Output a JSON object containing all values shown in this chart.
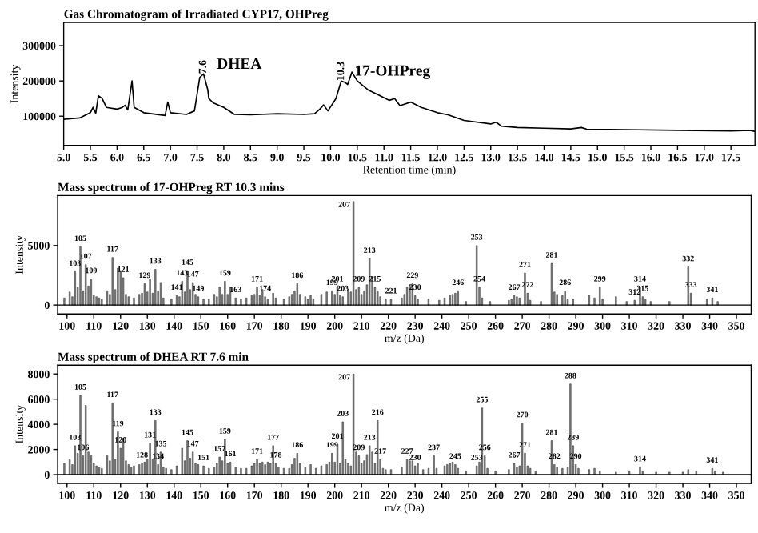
{
  "chart_data": [
    {
      "type": "line",
      "title": "Gas Chromatogram of Irradiated CYP17, OHPreg",
      "xlabel": "Retention time (min)",
      "ylabel": "Intensity",
      "color": "#000000",
      "x": [
        5.0,
        5.3,
        5.5,
        5.55,
        5.6,
        5.65,
        5.72,
        5.8,
        6.0,
        6.1,
        6.15,
        6.2,
        6.28,
        6.32,
        6.5,
        6.9,
        6.95,
        7.0,
        7.3,
        7.45,
        7.55,
        7.62,
        7.7,
        7.72,
        7.8,
        8.0,
        8.2,
        8.5,
        9.0,
        9.5,
        9.7,
        9.8,
        9.87,
        9.95,
        10.1,
        10.2,
        10.28,
        10.32,
        10.4,
        10.5,
        10.7,
        10.9,
        11.1,
        11.2,
        11.3,
        11.5,
        11.7,
        12.0,
        12.2,
        12.5,
        13.0,
        13.1,
        13.2,
        13.5,
        14.0,
        14.5,
        14.7,
        14.8,
        15.5,
        16.5,
        17.5,
        17.85,
        17.95
      ],
      "values": [
        91000,
        95000,
        110000,
        125000,
        108000,
        158000,
        150000,
        125000,
        120000,
        125000,
        131000,
        118000,
        200000,
        125000,
        110000,
        102000,
        140000,
        110000,
        105000,
        115000,
        210000,
        220000,
        175000,
        150000,
        138000,
        125000,
        105000,
        104000,
        107000,
        105000,
        107000,
        120000,
        132000,
        115000,
        150000,
        200000,
        195000,
        190000,
        225000,
        200000,
        175000,
        160000,
        145000,
        150000,
        130000,
        140000,
        125000,
        110000,
        104000,
        88000,
        78000,
        83000,
        72000,
        68000,
        66000,
        64000,
        68000,
        63000,
        62000,
        60000,
        58000,
        60000,
        57000
      ],
      "xlim": [
        5.0,
        17.95
      ],
      "ylim": [
        17000,
        366000
      ],
      "xticks": [
        {
          "value": 5,
          "label": "5.0"
        },
        5.5,
        {
          "value": 6,
          "label": "6.0"
        },
        6.5,
        {
          "value": 7,
          "label": "7.0"
        },
        7.5,
        {
          "value": 8,
          "label": "8.0"
        },
        8.5,
        {
          "value": 9,
          "label": "9.0"
        },
        9.5,
        {
          "value": 10,
          "label": "10.0"
        },
        10.5,
        {
          "value": 11,
          "label": "11.0"
        },
        11.5,
        {
          "value": 12,
          "label": "12.0"
        },
        12.5,
        {
          "value": 13,
          "label": "13.0"
        },
        13.5,
        {
          "value": 14,
          "label": "14.0"
        },
        14.5,
        {
          "value": 15,
          "label": "15.0"
        },
        15.5,
        {
          "value": 16,
          "label": "16.0"
        },
        16.5,
        {
          "value": 17,
          "label": "17.0"
        },
        17.5
      ],
      "yticks": [
        100000,
        200000,
        300000
      ],
      "annotations": [
        {
          "text": "7.6",
          "x": 7.62,
          "y": 220000
        },
        "DHEA",
        {
          "text": "10.3",
          "x": 10.2,
          "y": 200000
        },
        "17-OHPreg"
      ]
    },
    {
      "type": "bar",
      "title": "Mass spectrum of 17-OHPreg RT 10.3 mins",
      "xlabel": "m/z (Da)",
      "ylabel": "Intensity",
      "color": "#808080",
      "x": [
        99,
        101,
        102,
        103,
        104,
        105,
        106,
        107,
        108,
        109,
        110,
        111,
        112,
        113,
        115,
        116,
        117,
        118,
        119,
        120,
        121,
        122,
        123,
        125,
        127,
        128,
        129,
        130,
        131,
        132,
        133,
        134,
        135,
        136,
        139,
        141,
        142,
        143,
        144,
        145,
        146,
        147,
        148,
        149,
        151,
        153,
        155,
        156,
        157,
        158,
        159,
        160,
        161,
        163,
        165,
        167,
        169,
        170,
        171,
        172,
        173,
        174,
        175,
        177,
        178,
        181,
        183,
        184,
        185,
        186,
        187,
        189,
        190,
        191,
        192,
        195,
        197,
        199,
        200,
        201,
        202,
        203,
        205,
        206,
        207,
        208,
        209,
        210,
        211,
        212,
        213,
        214,
        215,
        216,
        217,
        219,
        221,
        225,
        226,
        227,
        228,
        229,
        230,
        231,
        235,
        239,
        241,
        243,
        244,
        245,
        246,
        249,
        253,
        254,
        255,
        258,
        265,
        266,
        267,
        268,
        269,
        271,
        272,
        273,
        277,
        281,
        282,
        283,
        285,
        286,
        287,
        289,
        295,
        297,
        299,
        300,
        305,
        309,
        312,
        314,
        315,
        316,
        318,
        325,
        332,
        333,
        339,
        341,
        343
      ],
      "values": [
        600,
        1100,
        700,
        2800,
        1500,
        4900,
        1200,
        3400,
        1600,
        2200,
        800,
        700,
        600,
        500,
        1200,
        900,
        4000,
        1300,
        3100,
        2900,
        2300,
        900,
        700,
        600,
        900,
        1000,
        1800,
        1100,
        2200,
        1000,
        3000,
        1200,
        1900,
        600,
        500,
        800,
        700,
        2000,
        1100,
        2900,
        1300,
        1900,
        900,
        700,
        500,
        500,
        900,
        700,
        1500,
        900,
        2000,
        900,
        1500,
        600,
        500,
        600,
        800,
        900,
        1500,
        800,
        1300,
        700,
        500,
        1000,
        600,
        500,
        700,
        900,
        1200,
        1800,
        900,
        700,
        500,
        800,
        500,
        900,
        1100,
        1200,
        900,
        1500,
        800,
        700,
        1200,
        1100,
        8700,
        1300,
        1500,
        900,
        1200,
        1700,
        3900,
        2400,
        1500,
        1200,
        700,
        500,
        500,
        600,
        900,
        1500,
        1700,
        1800,
        800,
        500,
        500,
        400,
        600,
        800,
        900,
        1000,
        1200,
        300,
        5000,
        1500,
        600,
        300,
        400,
        500,
        800,
        700,
        600,
        2700,
        1000,
        400,
        300,
        3500,
        1100,
        900,
        800,
        1200,
        500,
        500,
        800,
        600,
        1500,
        500,
        700,
        300,
        400,
        1500,
        700,
        500,
        300,
        300,
        3200,
        1000,
        500,
        600,
        300
      ],
      "annotations": [
        {
          "text": "103",
          "x": 103,
          "y": 2800
        },
        {
          "text": "105",
          "x": 105,
          "y": 4900
        },
        {
          "text": "107",
          "x": 107,
          "y": 3400
        },
        {
          "text": "109",
          "x": 109,
          "y": 2200
        },
        {
          "text": "117",
          "x": 117,
          "y": 4000
        },
        {
          "text": "121",
          "x": 121,
          "y": 2300
        },
        {
          "text": "129",
          "x": 129,
          "y": 1800
        },
        {
          "text": "133",
          "x": 133,
          "y": 3000
        },
        {
          "text": "141",
          "x": 141,
          "y": 800
        },
        {
          "text": "143",
          "x": 143,
          "y": 2000
        },
        {
          "text": "145",
          "x": 145,
          "y": 2900
        },
        {
          "text": "147",
          "x": 147,
          "y": 1900
        },
        {
          "text": "149",
          "x": 149,
          "y": 700
        },
        {
          "text": "159",
          "x": 159,
          "y": 2000
        },
        {
          "text": "163",
          "x": 163,
          "y": 600
        },
        {
          "text": "171",
          "x": 171,
          "y": 1500
        },
        {
          "text": "174",
          "x": 174,
          "y": 700
        },
        {
          "text": "186",
          "x": 186,
          "y": 1800
        },
        {
          "text": "199",
          "x": 199,
          "y": 1200
        },
        {
          "text": "201",
          "x": 201,
          "y": 1500
        },
        {
          "text": "203",
          "x": 203,
          "y": 700
        },
        {
          "text": "207",
          "x": 207,
          "y": 8700
        },
        {
          "text": "209",
          "x": 209,
          "y": 1500
        },
        {
          "text": "213",
          "x": 213,
          "y": 3900
        },
        {
          "text": "215",
          "x": 215,
          "y": 1500
        },
        {
          "text": "221",
          "x": 221,
          "y": 500
        },
        {
          "text": "229",
          "x": 229,
          "y": 1800
        },
        {
          "text": "230",
          "x": 230,
          "y": 800
        },
        {
          "text": "246",
          "x": 246,
          "y": 1200
        },
        {
          "text": "253",
          "x": 253,
          "y": 5000
        },
        {
          "text": "254",
          "x": 254,
          "y": 1500
        },
        {
          "text": "267",
          "x": 267,
          "y": 800
        },
        {
          "text": "271",
          "x": 271,
          "y": 2700
        },
        {
          "text": "272",
          "x": 272,
          "y": 1000
        },
        {
          "text": "281",
          "x": 281,
          "y": 3500
        },
        {
          "text": "286",
          "x": 286,
          "y": 1200
        },
        {
          "text": "299",
          "x": 299,
          "y": 1500
        },
        {
          "text": "312",
          "x": 312,
          "y": 400
        },
        {
          "text": "314",
          "x": 314,
          "y": 1500
        },
        {
          "text": "315",
          "x": 315,
          "y": 700
        },
        {
          "text": "332",
          "x": 332,
          "y": 3200
        },
        {
          "text": "333",
          "x": 333,
          "y": 1000
        },
        {
          "text": "341",
          "x": 341,
          "y": 600
        }
      ],
      "xlim": [
        96.5,
        355.5
      ],
      "ylim": [
        -750,
        9200
      ],
      "xticks": [
        100,
        110,
        120,
        130,
        140,
        150,
        160,
        170,
        180,
        190,
        200,
        210,
        220,
        230,
        240,
        250,
        260,
        270,
        280,
        290,
        300,
        310,
        320,
        330,
        340,
        350
      ],
      "yticks": [
        0,
        5000
      ]
    },
    {
      "type": "bar",
      "title": "Mass spectrum of DHEA RT 7.6 min",
      "xlabel": "m/z (Da)",
      "ylabel": "Intensity",
      "color": "#808080",
      "x": [
        99,
        101,
        102,
        103,
        104,
        105,
        106,
        107,
        108,
        109,
        110,
        111,
        112,
        113,
        115,
        116,
        117,
        118,
        119,
        120,
        121,
        122,
        123,
        124,
        125,
        127,
        128,
        129,
        130,
        131,
        132,
        133,
        134,
        135,
        136,
        137,
        139,
        141,
        143,
        144,
        145,
        146,
        147,
        148,
        149,
        151,
        153,
        155,
        156,
        157,
        158,
        159,
        160,
        161,
        163,
        165,
        167,
        169,
        170,
        171,
        172,
        173,
        174,
        175,
        176,
        177,
        178,
        179,
        181,
        183,
        184,
        185,
        186,
        187,
        189,
        191,
        193,
        195,
        197,
        198,
        199,
        200,
        201,
        202,
        203,
        204,
        205,
        206,
        207,
        208,
        209,
        210,
        211,
        212,
        213,
        214,
        215,
        216,
        217,
        218,
        219,
        221,
        225,
        227,
        228,
        229,
        230,
        231,
        233,
        235,
        237,
        238,
        241,
        242,
        243,
        244,
        245,
        246,
        249,
        253,
        254,
        255,
        256,
        257,
        260,
        265,
        267,
        268,
        269,
        270,
        271,
        272,
        273,
        275,
        281,
        282,
        283,
        285,
        287,
        288,
        289,
        290,
        291,
        295,
        297,
        299,
        305,
        310,
        314,
        315,
        320,
        325,
        330,
        332,
        335,
        341,
        342,
        345
      ],
      "values": [
        900,
        1200,
        800,
        2300,
        1700,
        6300,
        1500,
        5500,
        1800,
        1500,
        900,
        700,
        600,
        500,
        1500,
        1100,
        5700,
        1200,
        3400,
        2100,
        2900,
        1100,
        800,
        600,
        700,
        800,
        900,
        1000,
        1200,
        2500,
        1200,
        4300,
        800,
        1800,
        600,
        500,
        400,
        700,
        2100,
        1100,
        2700,
        1300,
        1800,
        900,
        800,
        700,
        500,
        600,
        900,
        1400,
        1100,
        2800,
        900,
        1000,
        600,
        500,
        500,
        700,
        900,
        1200,
        900,
        1000,
        800,
        1000,
        900,
        2300,
        900,
        600,
        500,
        500,
        800,
        1300,
        1700,
        900,
        600,
        800,
        500,
        700,
        800,
        1000,
        1700,
        1000,
        2400,
        900,
        4200,
        1200,
        900,
        700,
        8000,
        1800,
        1500,
        900,
        1100,
        1600,
        2300,
        1800,
        900,
        4300,
        1200,
        500,
        400,
        400,
        600,
        1200,
        1100,
        1100,
        700,
        900,
        400,
        500,
        1500,
        500,
        700,
        800,
        900,
        1000,
        800,
        500,
        300,
        700,
        1000,
        5300,
        1500,
        500,
        300,
        400,
        900,
        600,
        700,
        4100,
        1700,
        700,
        500,
        300,
        2700,
        800,
        600,
        500,
        600,
        7200,
        2300,
        800,
        500,
        400,
        500,
        300,
        200,
        300,
        600,
        300,
        200,
        200,
        200,
        400,
        300,
        500,
        300,
        200
      ],
      "annotations": [
        {
          "text": "103",
          "x": 103,
          "y": 2300
        },
        {
          "text": "105",
          "x": 105,
          "y": 6300
        },
        {
          "text": "106",
          "x": 106,
          "y": 1500
        },
        {
          "text": "117",
          "x": 117,
          "y": 5700
        },
        {
          "text": "119",
          "x": 119,
          "y": 3400
        },
        {
          "text": "120",
          "x": 120,
          "y": 2100
        },
        {
          "text": "128",
          "x": 128,
          "y": 900
        },
        {
          "text": "131",
          "x": 131,
          "y": 2500
        },
        {
          "text": "133",
          "x": 133,
          "y": 4300
        },
        {
          "text": "134",
          "x": 134,
          "y": 800
        },
        {
          "text": "135",
          "x": 135,
          "y": 1800
        },
        {
          "text": "145",
          "x": 145,
          "y": 2700
        },
        {
          "text": "147",
          "x": 147,
          "y": 1800
        },
        {
          "text": "151",
          "x": 151,
          "y": 700
        },
        {
          "text": "157",
          "x": 157,
          "y": 1400
        },
        {
          "text": "159",
          "x": 159,
          "y": 2800
        },
        {
          "text": "161",
          "x": 161,
          "y": 1000
        },
        {
          "text": "171",
          "x": 171,
          "y": 1200
        },
        {
          "text": "177",
          "x": 177,
          "y": 2300
        },
        {
          "text": "178",
          "x": 178,
          "y": 900
        },
        {
          "text": "186",
          "x": 186,
          "y": 1700
        },
        {
          "text": "199",
          "x": 199,
          "y": 1700
        },
        {
          "text": "201",
          "x": 201,
          "y": 2400
        },
        {
          "text": "203",
          "x": 203,
          "y": 4200
        },
        {
          "text": "207",
          "x": 207,
          "y": 8000
        },
        {
          "text": "209",
          "x": 209,
          "y": 1500
        },
        {
          "text": "213",
          "x": 213,
          "y": 2300
        },
        {
          "text": "216",
          "x": 216,
          "y": 4300
        },
        {
          "text": "217",
          "x": 217,
          "y": 1200
        },
        {
          "text": "227",
          "x": 227,
          "y": 1200
        },
        {
          "text": "230",
          "x": 230,
          "y": 700
        },
        {
          "text": "237",
          "x": 237,
          "y": 1500
        },
        {
          "text": "245",
          "x": 245,
          "y": 800
        },
        {
          "text": "253",
          "x": 253,
          "y": 700
        },
        {
          "text": "255",
          "x": 255,
          "y": 5300
        },
        {
          "text": "256",
          "x": 256,
          "y": 1500
        },
        {
          "text": "267",
          "x": 267,
          "y": 900
        },
        {
          "text": "270",
          "x": 270,
          "y": 4100
        },
        {
          "text": "271",
          "x": 271,
          "y": 1700
        },
        {
          "text": "281",
          "x": 281,
          "y": 2700
        },
        {
          "text": "282",
          "x": 282,
          "y": 800
        },
        {
          "text": "288",
          "x": 288,
          "y": 7200
        },
        {
          "text": "289",
          "x": 289,
          "y": 2300
        },
        {
          "text": "290",
          "x": 290,
          "y": 800
        },
        {
          "text": "314",
          "x": 314,
          "y": 600
        },
        {
          "text": "341",
          "x": 341,
          "y": 500
        }
      ],
      "xlim": [
        96.5,
        355.5
      ],
      "ylim": [
        -700,
        8700
      ],
      "xticks": [
        100,
        110,
        120,
        130,
        140,
        150,
        160,
        170,
        180,
        190,
        200,
        210,
        220,
        230,
        240,
        250,
        260,
        270,
        280,
        290,
        300,
        310,
        320,
        330,
        340,
        350
      ],
      "yticks": [
        0,
        2000,
        4000,
        6000,
        8000
      ]
    }
  ]
}
